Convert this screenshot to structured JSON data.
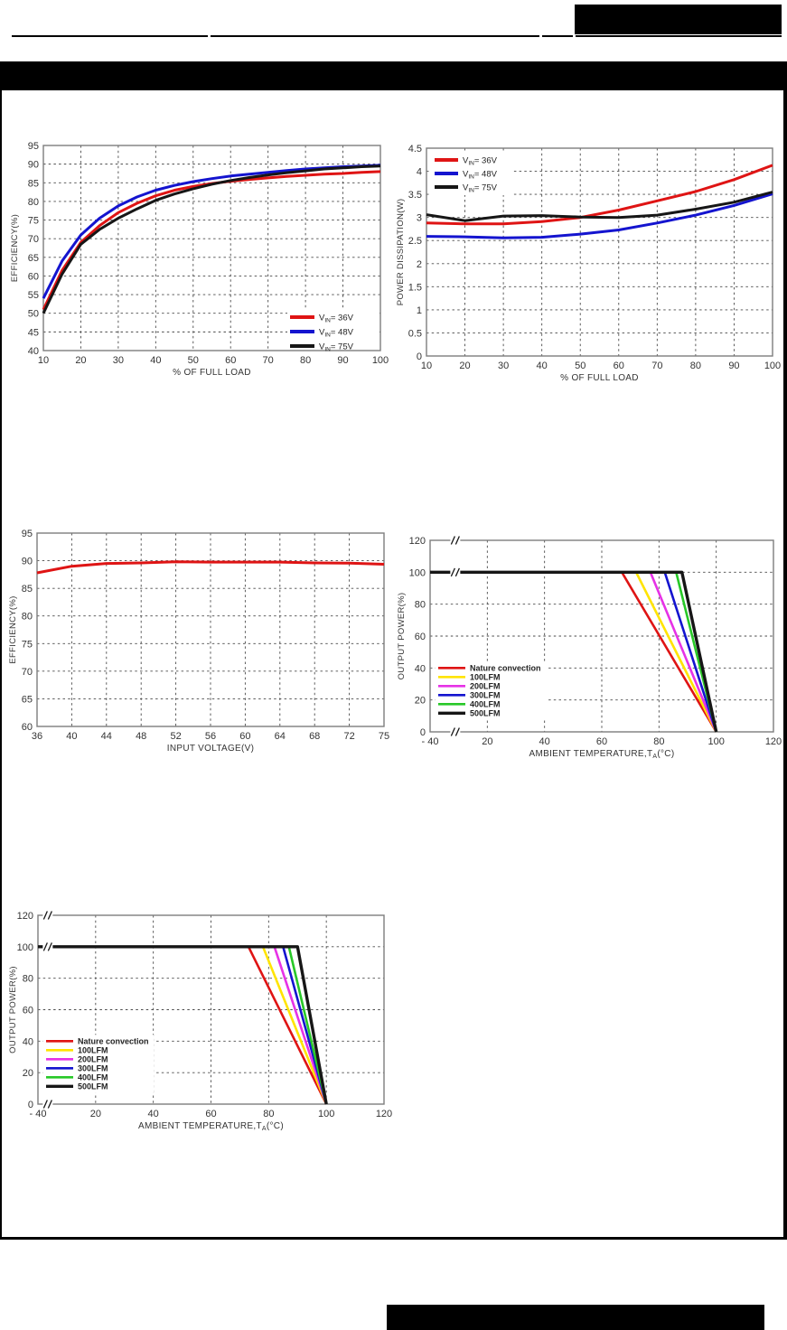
{
  "page": {
    "background": "#ffffff",
    "frame_color": "#000000",
    "header_bar_color": "#000000",
    "logo_box_color": "#000000",
    "footer_bar_color": "#000000"
  },
  "chart_data": [
    {
      "type": "line",
      "name": "efficiency-vs-full-load",
      "xlabel": "% OF FULL LOAD",
      "ylabel": "EFFICIENCY(%)",
      "x_mode": "linear",
      "xlim": [
        10,
        100
      ],
      "ylim": [
        40,
        95
      ],
      "xticks": [
        10,
        20,
        30,
        40,
        50,
        60,
        70,
        80,
        90,
        100
      ],
      "yticks": [
        40,
        45,
        50,
        55,
        60,
        65,
        70,
        75,
        80,
        85,
        90,
        95
      ],
      "grid": "dashed",
      "x": [
        10,
        15,
        20,
        25,
        30,
        35,
        40,
        45,
        50,
        55,
        60,
        65,
        70,
        75,
        80,
        85,
        90,
        95,
        100
      ],
      "series": [
        {
          "name": "VIN= 36V",
          "color": "#df1414",
          "lw": 3,
          "values": [
            51,
            61.5,
            69,
            73.5,
            77,
            79.5,
            81.5,
            83,
            84,
            84.8,
            85.4,
            85.9,
            86.3,
            86.7,
            87,
            87.3,
            87.5,
            87.8,
            88
          ]
        },
        {
          "name": "VIN= 48V",
          "color": "#1414cf",
          "lw": 3,
          "values": [
            54,
            64,
            71,
            75.5,
            78.8,
            81.2,
            83,
            84.3,
            85.3,
            86.1,
            86.8,
            87.3,
            87.8,
            88.3,
            88.7,
            89,
            89.3,
            89.5,
            89.7
          ]
        },
        {
          "name": "VIN= 75V",
          "color": "#161616",
          "lw": 3,
          "values": [
            50,
            60.5,
            68.5,
            72.5,
            75.5,
            78,
            80.3,
            82,
            83.4,
            84.6,
            85.6,
            86.4,
            87.1,
            87.7,
            88.2,
            88.7,
            89,
            89.3,
            89.5
          ]
        }
      ],
      "legend": {
        "position": "bottom-right"
      }
    },
    {
      "type": "line",
      "name": "power-dissipation-vs-full-load",
      "xlabel": "% OF FULL LOAD",
      "ylabel": "POWER DISSIPATION(W)",
      "x_mode": "linear",
      "xlim": [
        10,
        100
      ],
      "ylim": [
        0,
        4.5
      ],
      "xticks": [
        10,
        20,
        30,
        40,
        50,
        60,
        70,
        80,
        90,
        100
      ],
      "yticks": [
        0,
        0.5,
        1,
        1.5,
        2,
        2.5,
        3,
        3.5,
        4,
        4.5
      ],
      "grid": "dashed",
      "x": [
        10,
        20,
        30,
        40,
        50,
        60,
        70,
        80,
        90,
        100
      ],
      "series": [
        {
          "name": "VIN= 36V",
          "color": "#df1414",
          "lw": 3,
          "values": [
            2.88,
            2.86,
            2.86,
            2.91,
            3.0,
            3.16,
            3.36,
            3.56,
            3.82,
            4.13
          ]
        },
        {
          "name": "VIN= 48V",
          "color": "#1414cf",
          "lw": 3,
          "values": [
            2.59,
            2.58,
            2.56,
            2.57,
            2.64,
            2.73,
            2.88,
            3.05,
            3.26,
            3.51
          ]
        },
        {
          "name": "VIN= 75V",
          "color": "#161616",
          "lw": 3,
          "values": [
            3.06,
            2.93,
            3.03,
            3.04,
            3.01,
            3.0,
            3.05,
            3.18,
            3.33,
            3.55
          ]
        }
      ],
      "legend": {
        "position": "top-left"
      }
    },
    {
      "type": "line",
      "name": "efficiency-vs-input-voltage",
      "xlabel": "INPUT VOLTAGE(V)",
      "ylabel": "EFFICIENCY(%)",
      "x_mode": "ordinal",
      "xticks": [
        "36",
        "40",
        "44",
        "48",
        "52",
        "56",
        "60",
        "64",
        "68",
        "72",
        "75"
      ],
      "ylim": [
        60,
        95
      ],
      "yticks": [
        60,
        65,
        70,
        75,
        80,
        85,
        90,
        95
      ],
      "grid": "dashed",
      "x": [
        0,
        1,
        2,
        3,
        4,
        5,
        6,
        7,
        8,
        9,
        10
      ],
      "series": [
        {
          "name": "",
          "color": "#df1414",
          "lw": 3,
          "values": [
            87.8,
            89.0,
            89.5,
            89.6,
            89.8,
            89.75,
            89.75,
            89.75,
            89.6,
            89.55,
            89.35
          ]
        }
      ]
    },
    {
      "type": "line",
      "name": "derating-output-power-vs-ambient-temperature-1",
      "xlabel": "AMBIENT TEMPERATURE,TA(°C)",
      "ylabel": "OUTPUT POWER(%)",
      "x_mode": "tempbreak",
      "xticks": [
        "- 40",
        "20",
        "40",
        "60",
        "80",
        "100",
        "120"
      ],
      "ylim": [
        0,
        120
      ],
      "yticks": [
        0,
        20,
        40,
        60,
        80,
        100,
        120
      ],
      "grid": "dashed",
      "axis_break": true,
      "break_pos": 0.44,
      "series": [
        {
          "name": "Nature convection",
          "color": "#df1414",
          "lw": 2.6,
          "points": [
            [
              -40,
              100
            ],
            [
              67,
              100
            ],
            [
              100,
              0
            ]
          ]
        },
        {
          "name": "100LFM",
          "color": "#ffe400",
          "lw": 2.6,
          "points": [
            [
              -40,
              100
            ],
            [
              72,
              100
            ],
            [
              100,
              0
            ]
          ]
        },
        {
          "name": "200LFM",
          "color": "#e632e6",
          "lw": 2.6,
          "points": [
            [
              -40,
              100
            ],
            [
              77,
              100
            ],
            [
              100,
              0
            ]
          ]
        },
        {
          "name": "300LFM",
          "color": "#1414cf",
          "lw": 2.6,
          "points": [
            [
              -40,
              100
            ],
            [
              82,
              100
            ],
            [
              100,
              0
            ]
          ]
        },
        {
          "name": "400LFM",
          "color": "#28c828",
          "lw": 2.6,
          "points": [
            [
              -40,
              100
            ],
            [
              86,
              100
            ],
            [
              100,
              0
            ]
          ]
        },
        {
          "name": "500LFM",
          "color": "#161616",
          "lw": 3.4,
          "points": [
            [
              -40,
              100
            ],
            [
              88,
              100
            ],
            [
              100,
              0
            ]
          ]
        }
      ],
      "legend": {
        "position": "mid-left"
      }
    },
    {
      "type": "line",
      "name": "derating-output-power-vs-ambient-temperature-2",
      "xlabel": "AMBIENT TEMPERATURE,TA(°C)",
      "ylabel": "OUTPUT POWER(%)",
      "x_mode": "tempbreak",
      "xticks": [
        "- 40",
        "20",
        "40",
        "60",
        "80",
        "100",
        "120"
      ],
      "ylim": [
        0,
        120
      ],
      "yticks": [
        0,
        20,
        40,
        60,
        80,
        100,
        120
      ],
      "grid": "dashed",
      "axis_break": true,
      "break_pos": 0.17,
      "series": [
        {
          "name": "Nature convection",
          "color": "#df1414",
          "lw": 2.6,
          "points": [
            [
              -40,
              100
            ],
            [
              73,
              100
            ],
            [
              100,
              0
            ]
          ]
        },
        {
          "name": "100LFM",
          "color": "#ffe400",
          "lw": 2.6,
          "points": [
            [
              -40,
              100
            ],
            [
              78,
              100
            ],
            [
              100,
              0
            ]
          ]
        },
        {
          "name": "200LFM",
          "color": "#e632e6",
          "lw": 2.6,
          "points": [
            [
              -40,
              100
            ],
            [
              82,
              100
            ],
            [
              100,
              0
            ]
          ]
        },
        {
          "name": "300LFM",
          "color": "#1414cf",
          "lw": 2.6,
          "points": [
            [
              -40,
              100
            ],
            [
              85,
              100
            ],
            [
              100,
              0
            ]
          ]
        },
        {
          "name": "400LFM",
          "color": "#28c828",
          "lw": 2.6,
          "points": [
            [
              -40,
              100
            ],
            [
              87,
              100
            ],
            [
              100,
              0
            ]
          ]
        },
        {
          "name": "500LFM",
          "color": "#161616",
          "lw": 3.4,
          "points": [
            [
              -40,
              100
            ],
            [
              90,
              100
            ],
            [
              100,
              0
            ]
          ]
        }
      ],
      "legend": {
        "position": "mid-left"
      }
    }
  ]
}
